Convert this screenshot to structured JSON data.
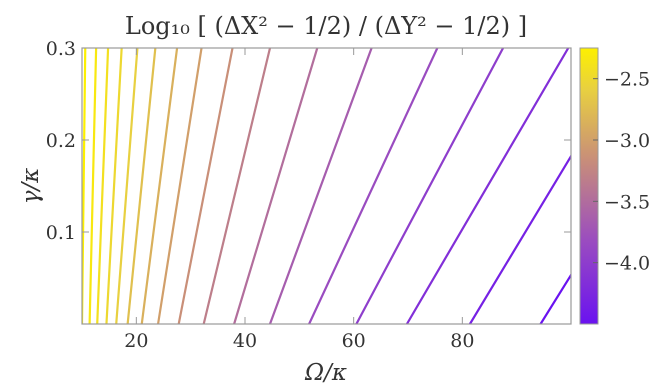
{
  "chart_data": {
    "type": "contour",
    "title": "Log₁₀ [ (ΔX² − 1/2) / (ΔY² − 1/2) ]",
    "xlabel": "Ω/κ",
    "ylabel": "γ/κ",
    "xlim": [
      10,
      100
    ],
    "ylim": [
      0,
      0.3
    ],
    "x_ticks": [
      "20",
      "40",
      "60",
      "80"
    ],
    "y_ticks": [
      "0.1",
      "0.2",
      "0.3"
    ],
    "colorbar": {
      "range": [
        -4.5,
        -2.25
      ],
      "ticks": [
        "−2.5",
        "−3.0",
        "−3.5",
        "−4.0"
      ],
      "colormap": [
        "#6a12f0",
        "#9a4cc0",
        "#c98f78",
        "#e8d040",
        "#fdf000"
      ]
    },
    "grid": false,
    "contour_lines": [
      {
        "x_bottom": 10.0,
        "x_top": 10.6
      },
      {
        "x_bottom": 11.4,
        "x_top": 12.6
      },
      {
        "x_bottom": 12.8,
        "x_top": 14.8
      },
      {
        "x_bottom": 14.5,
        "x_top": 17.3
      },
      {
        "x_bottom": 16.3,
        "x_top": 20.2
      },
      {
        "x_bottom": 18.4,
        "x_top": 23.5
      },
      {
        "x_bottom": 21.0,
        "x_top": 27.5
      },
      {
        "x_bottom": 24.0,
        "x_top": 32.0
      },
      {
        "x_bottom": 27.8,
        "x_top": 37.7
      },
      {
        "x_bottom": 32.4,
        "x_top": 44.6
      },
      {
        "x_bottom": 38.0,
        "x_top": 53.3
      },
      {
        "x_bottom": 44.6,
        "x_top": 63.3
      },
      {
        "x_bottom": 51.8,
        "x_top": 75.4
      },
      {
        "x_bottom": 60.5,
        "x_top": 87.5
      },
      {
        "x_bottom": 69.8,
        "x_top": 99.5
      },
      {
        "x_bottom": 81.4,
        "x_top": 112.0
      },
      {
        "x_bottom": 94.4,
        "x_top": 126.0
      }
    ]
  }
}
